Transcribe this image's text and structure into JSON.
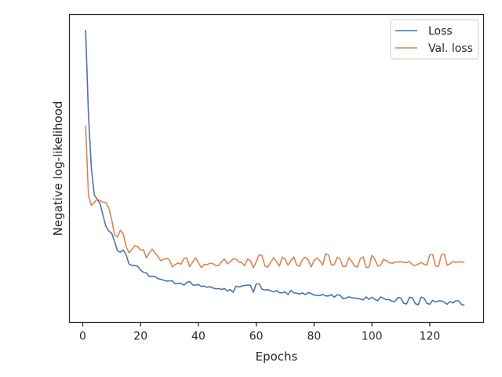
{
  "chart_data": {
    "type": "line",
    "title": "",
    "xlabel": "Epochs",
    "ylabel": "Negative log-likelihood",
    "xlim": [
      -4.6,
      138.6
    ],
    "ylim": [
      0.0,
      1.0
    ],
    "xticks": [
      0,
      20,
      40,
      60,
      80,
      100,
      120
    ],
    "yticks": [],
    "grid": false,
    "legend_position": "top-right",
    "series": [
      {
        "name": "Loss",
        "color": "#4c72b0",
        "x": [
          1,
          2,
          3,
          4,
          5,
          6,
          7,
          8,
          9,
          10,
          11,
          12,
          13,
          14,
          15,
          16,
          17,
          18,
          19,
          20,
          21,
          22,
          23,
          24,
          25,
          26,
          27,
          28,
          29,
          30,
          31,
          32,
          33,
          34,
          35,
          36,
          37,
          38,
          39,
          40,
          41,
          42,
          43,
          44,
          45,
          46,
          47,
          48,
          49,
          50,
          51,
          52,
          53,
          54,
          55,
          56,
          57,
          58,
          59,
          60,
          61,
          62,
          63,
          64,
          65,
          66,
          67,
          68,
          69,
          70,
          71,
          72,
          73,
          74,
          75,
          76,
          77,
          78,
          79,
          80,
          81,
          82,
          83,
          84,
          85,
          86,
          87,
          88,
          89,
          90,
          91,
          92,
          93,
          94,
          95,
          96,
          97,
          98,
          99,
          100,
          101,
          102,
          103,
          104,
          105,
          106,
          107,
          108,
          109,
          110,
          111,
          112,
          113,
          114,
          115,
          116,
          117,
          118,
          119,
          120,
          121,
          122,
          123,
          124,
          125,
          126,
          127,
          128,
          129,
          130,
          131,
          132
        ],
        "values": [
          0.95,
          0.67,
          0.5,
          0.414,
          0.4,
          0.385,
          0.349,
          0.312,
          0.297,
          0.29,
          0.263,
          0.233,
          0.228,
          0.235,
          0.22,
          0.19,
          0.185,
          0.185,
          0.182,
          0.17,
          0.163,
          0.161,
          0.149,
          0.15,
          0.149,
          0.142,
          0.14,
          0.137,
          0.134,
          0.135,
          0.135,
          0.125,
          0.127,
          0.127,
          0.121,
          0.13,
          0.133,
          0.122,
          0.121,
          0.123,
          0.117,
          0.118,
          0.114,
          0.116,
          0.112,
          0.109,
          0.11,
          0.107,
          0.11,
          0.102,
          0.107,
          0.098,
          0.118,
          0.115,
          0.118,
          0.12,
          0.121,
          0.12,
          0.098,
          0.125,
          0.125,
          0.108,
          0.105,
          0.106,
          0.103,
          0.099,
          0.103,
          0.097,
          0.096,
          0.099,
          0.09,
          0.104,
          0.096,
          0.095,
          0.092,
          0.096,
          0.09,
          0.097,
          0.094,
          0.089,
          0.088,
          0.087,
          0.091,
          0.086,
          0.086,
          0.09,
          0.082,
          0.09,
          0.088,
          0.077,
          0.079,
          0.083,
          0.08,
          0.079,
          0.078,
          0.076,
          0.073,
          0.083,
          0.075,
          0.082,
          0.075,
          0.07,
          0.083,
          0.078,
          0.074,
          0.074,
          0.069,
          0.068,
          0.081,
          0.079,
          0.062,
          0.06,
          0.082,
          0.08,
          0.061,
          0.057,
          0.082,
          0.079,
          0.062,
          0.059,
          0.072,
          0.066,
          0.07,
          0.07,
          0.066,
          0.059,
          0.068,
          0.063,
          0.07,
          0.07,
          0.058,
          0.056
        ]
      },
      {
        "name": "Val. loss",
        "color": "#dd8452",
        "x": [
          1,
          2,
          3,
          4,
          5,
          6,
          7,
          8,
          9,
          10,
          11,
          12,
          13,
          14,
          15,
          16,
          17,
          18,
          19,
          20,
          21,
          22,
          23,
          24,
          25,
          26,
          27,
          28,
          29,
          30,
          31,
          32,
          33,
          34,
          35,
          36,
          37,
          38,
          39,
          40,
          41,
          42,
          43,
          44,
          45,
          46,
          47,
          48,
          49,
          50,
          51,
          52,
          53,
          54,
          55,
          56,
          57,
          58,
          59,
          60,
          61,
          62,
          63,
          64,
          65,
          66,
          67,
          68,
          69,
          70,
          71,
          72,
          73,
          74,
          75,
          76,
          77,
          78,
          79,
          80,
          81,
          82,
          83,
          84,
          85,
          86,
          87,
          88,
          89,
          90,
          91,
          92,
          93,
          94,
          95,
          96,
          97,
          98,
          99,
          100,
          101,
          102,
          103,
          104,
          105,
          106,
          107,
          108,
          109,
          110,
          111,
          112,
          113,
          114,
          115,
          116,
          117,
          118,
          119,
          120,
          121,
          122,
          123,
          124,
          125,
          126,
          127,
          128,
          129,
          130,
          131,
          132
        ],
        "values": [
          0.64,
          0.41,
          0.38,
          0.389,
          0.401,
          0.395,
          0.391,
          0.389,
          0.373,
          0.335,
          0.285,
          0.277,
          0.299,
          0.288,
          0.247,
          0.226,
          0.237,
          0.249,
          0.246,
          0.235,
          0.236,
          0.21,
          0.225,
          0.238,
          0.226,
          0.214,
          0.2,
          0.205,
          0.208,
          0.203,
          0.18,
          0.188,
          0.193,
          0.189,
          0.208,
          0.209,
          0.181,
          0.196,
          0.21,
          0.194,
          0.178,
          0.188,
          0.188,
          0.192,
          0.191,
          0.185,
          0.184,
          0.197,
          0.206,
          0.19,
          0.197,
          0.206,
          0.206,
          0.196,
          0.194,
          0.184,
          0.206,
          0.201,
          0.177,
          0.197,
          0.22,
          0.217,
          0.183,
          0.18,
          0.195,
          0.21,
          0.197,
          0.183,
          0.212,
          0.205,
          0.186,
          0.2,
          0.213,
          0.186,
          0.183,
          0.205,
          0.212,
          0.203,
          0.18,
          0.201,
          0.209,
          0.2,
          0.186,
          0.223,
          0.219,
          0.186,
          0.188,
          0.212,
          0.205,
          0.182,
          0.182,
          0.21,
          0.199,
          0.183,
          0.18,
          0.207,
          0.213,
          0.178,
          0.18,
          0.218,
          0.206,
          0.183,
          0.186,
          0.205,
          0.2,
          0.194,
          0.192,
          0.196,
          0.196,
          0.197,
          0.195,
          0.194,
          0.198,
          0.187,
          0.185,
          0.189,
          0.195,
          0.189,
          0.186,
          0.219,
          0.221,
          0.184,
          0.181,
          0.22,
          0.222,
          0.186,
          0.19,
          0.198,
          0.195,
          0.197,
          0.196,
          0.196
        ]
      }
    ]
  }
}
